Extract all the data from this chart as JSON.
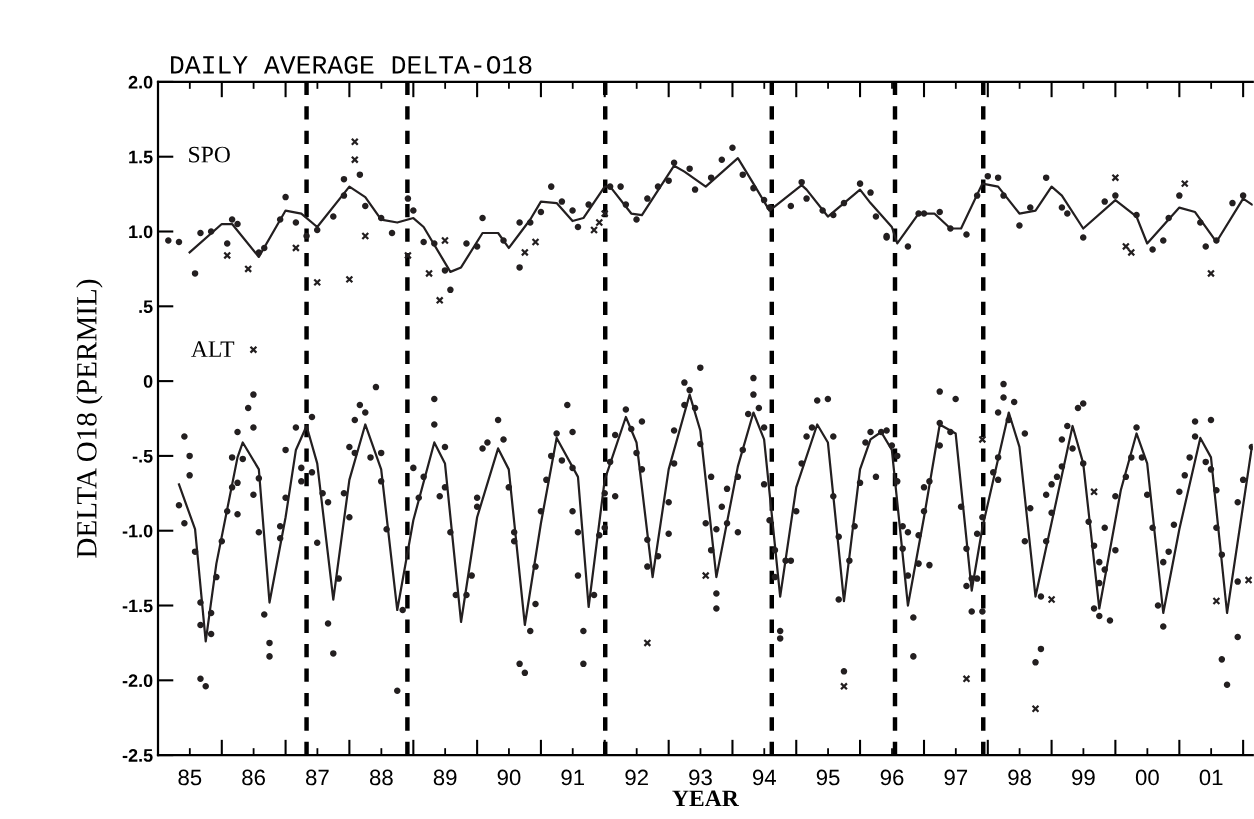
{
  "chart_data": {
    "type": "scatter",
    "title": "DAILY AVERAGE DELTA-O18",
    "xlabel": "YEAR",
    "ylabel": "DELTA O18 (PERMIL)",
    "xlim": [
      "1985-01-01",
      "2002-02-25"
    ],
    "ylim": [
      -2.5,
      2.0
    ],
    "xticks": [
      {
        "value": "1985-07-02",
        "label": "85"
      },
      {
        "value": "1986-07-02",
        "label": "86"
      },
      {
        "value": "1987-07-02",
        "label": "87"
      },
      {
        "value": "1988-07-02",
        "label": "88"
      },
      {
        "value": "1989-07-02",
        "label": "89"
      },
      {
        "value": "1990-07-02",
        "label": "90"
      },
      {
        "value": "1991-07-02",
        "label": "91"
      },
      {
        "value": "1992-07-02",
        "label": "92"
      },
      {
        "value": "1993-07-02",
        "label": "93"
      },
      {
        "value": "1994-07-02",
        "label": "94"
      },
      {
        "value": "1995-07-02",
        "label": "95"
      },
      {
        "value": "1996-07-02",
        "label": "96"
      },
      {
        "value": "1997-07-02",
        "label": "97"
      },
      {
        "value": "1998-07-02",
        "label": "98"
      },
      {
        "value": "1999-07-02",
        "label": "99"
      },
      {
        "value": "2000-07-02",
        "label": "00"
      },
      {
        "value": "2001-07-02",
        "label": "01"
      },
      {
        "value": "1986-01-01",
        "label": null
      },
      {
        "value": "1987-01-01",
        "label": null
      },
      {
        "value": "1988-01-01",
        "label": null
      },
      {
        "value": "1989-01-01",
        "label": null
      },
      {
        "value": "1990-01-01",
        "label": null
      },
      {
        "value": "1991-01-01",
        "label": null
      },
      {
        "value": "1992-01-01",
        "label": null
      },
      {
        "value": "1993-01-01",
        "label": null
      },
      {
        "value": "1994-01-01",
        "label": null
      },
      {
        "value": "1995-01-01",
        "label": null
      },
      {
        "value": "1996-01-01",
        "label": null
      },
      {
        "value": "1997-01-01",
        "label": null
      },
      {
        "value": "1998-01-01",
        "label": null
      },
      {
        "value": "1999-01-01",
        "label": null
      },
      {
        "value": "2000-01-01",
        "label": null
      },
      {
        "value": "2001-01-01",
        "label": null
      },
      {
        "value": "2002-01-01",
        "label": null
      }
    ],
    "yticks": [
      {
        "value": 2.0,
        "label": "2.0"
      },
      {
        "value": 1.5,
        "label": "1.5"
      },
      {
        "value": 1.0,
        "label": "1.0"
      },
      {
        "value": 0.5,
        "label": ".5"
      },
      {
        "value": 0,
        "label": "0"
      },
      {
        "value": -0.5,
        "label": "-.5"
      },
      {
        "value": -1.0,
        "label": "-1.0"
      },
      {
        "value": -1.5,
        "label": "-1.5"
      },
      {
        "value": -2.0,
        "label": "-2.0"
      },
      {
        "value": -2.5,
        "label": "-2.5"
      }
    ],
    "grid": false,
    "legend": false,
    "annotations": [
      "SPO",
      "ALT"
    ],
    "ref_lines": [
      {
        "axis": "x",
        "value": "1987-05-01",
        "line_style": "dashed",
        "color": "#000000"
      },
      {
        "axis": "x",
        "value": "1988-11-28",
        "line_style": "dashed",
        "color": "#000000"
      },
      {
        "axis": "x",
        "value": "1992-01-04",
        "line_style": "dashed",
        "color": "#000000"
      },
      {
        "axis": "x",
        "value": "1994-08-14",
        "line_style": "dashed",
        "color": "#000000"
      },
      {
        "axis": "x",
        "value": "1996-07-19",
        "line_style": "dashed",
        "color": "#000000"
      },
      {
        "axis": "x",
        "value": "1997-12-06",
        "line_style": "dashed",
        "color": "#000000"
      }
    ],
    "series": [
      {
        "marker": "circle",
        "color": "#231f20",
        "x": [
          "1985-03",
          "1985-05",
          "1985-08",
          "1985-09",
          "1985-11",
          "1986-03",
          "1986-04",
          "1986-02",
          "1986-08",
          "1986-09",
          "1986-12",
          "1987-01",
          "1987-03",
          "1987-05",
          "1987-07",
          "1987-10",
          "1987-12",
          "1987-12",
          "1988-03",
          "1988-04",
          "1988-07",
          "1988-09",
          "1988-12",
          "1989-01",
          "1989-03",
          "1989-05",
          "1989-07",
          "1989-08",
          "1989-11",
          "1990-01",
          "1990-02",
          "1990-06",
          "1990-09",
          "1990-09",
          "1990-11",
          "1991-01",
          "1991-03",
          "1991-05",
          "1991-07",
          "1991-08",
          "1991-10",
          "1992-02",
          "1992-04",
          "1992-05",
          "1992-07",
          "1992-09",
          "1992-11",
          "1993-01",
          "1993-02",
          "1993-05",
          "1993-06",
          "1993-09",
          "1993-11",
          "1994-01",
          "1994-03",
          "1994-05",
          "1994-07",
          "1994-08",
          "1994-12",
          "1995-02",
          "1995-03",
          "1995-06",
          "1995-08",
          "1995-10",
          "1996-01",
          "1996-03",
          "1996-04",
          "1996-06",
          "1996-06",
          "1996-10",
          "1996-12",
          "1997-01",
          "1997-04",
          "1997-06",
          "1997-09",
          "1997-11",
          "1998-01",
          "1998-03",
          "1998-04",
          "1998-07",
          "1998-09",
          "1998-12",
          "1999-03",
          "1999-04",
          "1999-07",
          "1999-11",
          "2000-01",
          "2000-05",
          "2000-08",
          "2000-10",
          "2000-11",
          "2001-01",
          "2001-05",
          "2001-06",
          "2001-08",
          "2001-11",
          "2002-01"
        ],
        "values": [
          0.94,
          0.93,
          0.72,
          0.99,
          1.0,
          1.08,
          1.05,
          0.92,
          0.86,
          0.89,
          1.08,
          1.23,
          1.06,
          0.97,
          1.01,
          1.1,
          1.35,
          1.24,
          1.38,
          1.17,
          1.09,
          0.99,
          1.22,
          1.14,
          0.93,
          0.92,
          0.74,
          0.61,
          0.92,
          0.9,
          1.09,
          0.94,
          0.76,
          1.06,
          1.06,
          1.13,
          1.3,
          1.2,
          1.14,
          1.03,
          1.18,
          1.3,
          1.3,
          1.18,
          1.08,
          1.22,
          1.3,
          1.34,
          1.46,
          1.42,
          1.28,
          1.36,
          1.48,
          1.56,
          1.38,
          1.29,
          1.21,
          1.16,
          1.17,
          1.33,
          1.22,
          1.14,
          1.11,
          1.19,
          1.32,
          1.26,
          1.1,
          0.97,
          0.96,
          0.9,
          1.12,
          1.12,
          1.13,
          1.02,
          0.98,
          1.24,
          1.37,
          1.36,
          1.24,
          1.04,
          1.16,
          1.36,
          1.16,
          1.12,
          0.96,
          1.2,
          1.24,
          1.11,
          0.88,
          0.94,
          1.09,
          1.24,
          1.06,
          0.9,
          0.94,
          1.19,
          1.24
        ]
      },
      {
        "marker": "cross",
        "color": "#231f20",
        "x": [
          "1986-02",
          "1986-06",
          "1987-03",
          "1987-07",
          "1988-01",
          "1988-02",
          "1988-02",
          "1988-04",
          "1988-12",
          "1989-04",
          "1989-07",
          "1989-06",
          "1990-10",
          "1990-12",
          "1991-11",
          "1991-12",
          "1992-01",
          "2000-01",
          "2000-03",
          "2000-04",
          "2001-02",
          "2001-07"
        ],
        "values": [
          0.84,
          0.75,
          0.89,
          0.66,
          0.68,
          1.48,
          1.6,
          0.97,
          0.84,
          0.72,
          0.94,
          0.54,
          0.86,
          0.93,
          1.01,
          1.06,
          1.12,
          1.36,
          0.9,
          0.86,
          1.32,
          0.72
        ]
      },
      {
        "type": "line",
        "marker": "none",
        "color": "#231f20",
        "x": [
          "1985-07",
          "1986-01",
          "1986-03",
          "1986-08",
          "1987-01",
          "1987-04",
          "1987-07",
          "1988-01",
          "1988-04",
          "1988-07",
          "1988-10",
          "1989-01",
          "1989-03",
          "1989-08",
          "1989-10",
          "1990-02",
          "1990-05",
          "1990-07",
          "1990-11",
          "1991-01",
          "1991-04",
          "1991-07",
          "1991-09",
          "1992-01",
          "1992-02",
          "1992-06",
          "1992-08",
          "1993-02",
          "1993-04",
          "1993-08",
          "1994-02",
          "1994-05",
          "1994-08",
          "1995-02",
          "1995-03",
          "1995-07",
          "1996-01",
          "1996-03",
          "1996-07",
          "1996-08",
          "1996-12",
          "1997-03",
          "1997-06",
          "1997-08",
          "1997-12",
          "1998-03",
          "1998-07",
          "1998-10",
          "1999-01",
          "1999-03",
          "1999-07",
          "2000-01",
          "2000-05",
          "2000-07",
          "2001-01",
          "2001-04",
          "2001-08",
          "2002-01",
          "2002-02-20"
        ],
        "values": [
          0.86,
          1.05,
          1.05,
          0.83,
          1.14,
          1.12,
          1.03,
          1.3,
          1.23,
          1.08,
          1.06,
          1.09,
          1.03,
          0.73,
          0.76,
          0.99,
          0.99,
          0.89,
          1.08,
          1.2,
          1.19,
          1.07,
          1.09,
          1.3,
          1.3,
          1.12,
          1.11,
          1.44,
          1.4,
          1.3,
          1.49,
          1.32,
          1.14,
          1.31,
          1.28,
          1.1,
          1.28,
          1.19,
          1.03,
          0.92,
          1.12,
          1.12,
          1.02,
          1.02,
          1.32,
          1.3,
          1.12,
          1.14,
          1.3,
          1.24,
          1.02,
          1.21,
          1.1,
          0.92,
          1.16,
          1.13,
          0.93,
          1.22,
          1.18
        ]
      },
      {
        "marker": "circle",
        "color": "#231f20",
        "x": [
          "1985-05",
          "1985-06",
          "1985-06",
          "1985-07",
          "1985-07",
          "1985-08",
          "1985-09",
          "1985-09",
          "1985-09",
          "1985-10",
          "1985-11",
          "1985-11",
          "1985-12",
          "1986-01",
          "1986-02",
          "1986-03",
          "1986-03",
          "1986-04",
          "1986-04",
          "1986-04",
          "1986-05",
          "1986-06",
          "1986-07",
          "1986-07",
          "1986-07",
          "1986-08",
          "1986-08",
          "1986-09",
          "1986-10",
          "1986-10",
          "1986-12",
          "1986-12",
          "1987-01",
          "1987-01",
          "1987-03",
          "1987-04",
          "1987-04",
          "1987-06",
          "1987-06",
          "1987-07",
          "1987-08",
          "1987-09",
          "1987-09",
          "1987-10",
          "1987-11",
          "1987-12",
          "1988-01",
          "1988-01",
          "1988-02",
          "1988-02",
          "1988-03",
          "1988-04",
          "1988-05",
          "1988-06",
          "1988-07",
          "1988-07",
          "1988-08",
          "1988-10",
          "1988-11",
          "1989-01",
          "1989-02",
          "1989-03",
          "1989-05",
          "1989-05",
          "1989-06",
          "1989-07",
          "1989-07",
          "1989-08",
          "1989-09",
          "1989-11",
          "1989-12",
          "1990-01",
          "1990-01",
          "1990-02",
          "1990-03",
          "1990-05",
          "1990-06",
          "1990-07",
          "1990-08",
          "1990-08",
          "1990-09",
          "1990-10",
          "1990-11",
          "1990-12",
          "1990-12",
          "1991-01",
          "1991-02",
          "1991-03",
          "1991-04",
          "1991-05",
          "1991-06",
          "1991-07",
          "1991-07",
          "1991-07",
          "1991-08",
          "1991-08",
          "1991-09",
          "1991-09",
          "1991-11",
          "1991-12",
          "1992-01",
          "1992-01",
          "1992-02",
          "1992-03",
          "1992-03",
          "1992-05",
          "1992-06",
          "1992-07",
          "1992-08",
          "1992-08",
          "1992-09",
          "1992-09",
          "1992-11",
          "1993-01",
          "1993-01",
          "1993-02",
          "1993-02",
          "1993-04",
          "1993-04",
          "1993-05",
          "1993-07",
          "1993-06",
          "1993-07",
          "1993-09",
          "1993-08",
          "1993-09",
          "1993-10",
          "1993-10",
          "1993-11",
          "1993-10",
          "1993-12",
          "1993-12",
          "1994-02",
          "1994-02",
          "1994-03",
          "1994-04",
          "1994-05",
          "1994-05",
          "1994-06",
          "1994-07",
          "1994-07",
          "1994-08",
          "1994-09",
          "1994-09",
          "1994-10",
          "1994-10",
          "1994-11",
          "1994-12",
          "1995-01",
          "1995-02",
          "1995-03",
          "1995-04",
          "1995-05",
          "1995-07",
          "1995-08",
          "1995-08",
          "1995-09",
          "1995-09",
          "1995-10",
          "1995-11",
          "1995-12",
          "1996-01",
          "1996-02",
          "1996-04",
          "1996-03",
          "1996-05",
          "1996-06",
          "1996-07",
          "1996-08",
          "1996-08",
          "1996-09",
          "1996-09",
          "1996-10",
          "1996-11",
          "1996-11",
          "1996-10",
          "1996-12",
          "1996-12",
          "1997-01",
          "1997-01",
          "1997-02",
          "1997-02",
          "1997-04",
          "1997-04",
          "1997-04",
          "1997-06",
          "1997-07",
          "1997-08",
          "1997-09",
          "1997-09",
          "1997-10",
          "1997-10",
          "1997-11",
          "1997-11",
          "1997-12",
          "1997-12",
          "1998-02",
          "1998-03",
          "1998-03",
          "1998-03",
          "1998-04",
          "1998-04",
          "1998-05",
          "1998-06",
          "1998-08",
          "1998-08",
          "1998-09",
          "1998-10",
          "1998-11",
          "1998-11",
          "1998-12",
          "1998-12",
          "1999-01",
          "1999-01",
          "1999-02",
          "1999-03",
          "1999-03",
          "1999-04",
          "1999-05",
          "1999-06",
          "1999-07",
          "1999-07",
          "1999-08",
          "1999-09",
          "1999-10",
          "1999-10",
          "1999-09",
          "1999-10",
          "1999-12",
          "1999-11",
          "1999-11",
          "2000-01",
          "2000-01",
          "2000-03",
          "2000-04",
          "2000-05",
          "2000-06",
          "2000-07",
          "2000-08",
          "2000-09",
          "2000-10",
          "2000-10",
          "2000-11",
          "2000-12",
          "2001-01",
          "2001-02",
          "2001-03",
          "2001-04",
          "2001-04",
          "2001-06",
          "2001-07",
          "2001-07",
          "2001-08",
          "2001-08",
          "2001-09",
          "2001-09",
          "2001-10",
          "2001-12",
          "2001-12",
          "2001-12",
          "2002-01",
          "2002-02-20"
        ],
        "values": [
          -0.83,
          -0.95,
          -0.37,
          -0.5,
          -0.63,
          -1.14,
          -1.48,
          -1.63,
          -1.99,
          -2.04,
          -1.69,
          -1.55,
          -1.31,
          -1.07,
          -0.87,
          -0.71,
          -0.51,
          -0.89,
          -0.68,
          -0.34,
          -0.52,
          -0.18,
          -0.09,
          -0.31,
          -0.76,
          -0.65,
          -1.01,
          -1.56,
          -1.75,
          -1.84,
          -0.97,
          -1.05,
          -0.46,
          -0.78,
          -0.31,
          -0.67,
          -0.58,
          -0.24,
          -0.61,
          -1.08,
          -0.75,
          -0.81,
          -1.62,
          -1.82,
          -1.32,
          -0.75,
          -0.91,
          -0.44,
          -0.48,
          -0.26,
          -0.16,
          -0.21,
          -0.51,
          -0.04,
          -0.67,
          -0.48,
          -0.99,
          -2.07,
          -1.53,
          -0.58,
          -0.78,
          -0.64,
          -0.12,
          -0.29,
          -0.77,
          -0.71,
          -0.44,
          -1.01,
          -1.43,
          -1.43,
          -1.3,
          -0.84,
          -0.78,
          -0.45,
          -0.41,
          -0.26,
          -0.39,
          -0.71,
          -1.01,
          -1.07,
          -1.89,
          -1.95,
          -1.67,
          -1.49,
          -1.24,
          -0.87,
          -0.66,
          -0.5,
          -0.35,
          -0.53,
          -0.16,
          -0.34,
          -0.58,
          -0.87,
          -1.01,
          -1.3,
          -1.67,
          -1.89,
          -1.43,
          -1.03,
          -0.75,
          -0.98,
          -0.54,
          -0.77,
          -0.36,
          -0.19,
          -0.32,
          -0.48,
          -0.27,
          -0.59,
          -1.06,
          -1.24,
          -1.17,
          -1.02,
          -0.81,
          -0.55,
          -0.33,
          -0.16,
          -0.01,
          -0.06,
          0.09,
          -0.18,
          -0.42,
          -0.64,
          -0.95,
          -1.13,
          -1.42,
          -1.52,
          -0.84,
          -0.99,
          -0.95,
          -0.72,
          -1.01,
          -0.64,
          -0.46,
          -0.22,
          -0.09,
          0.02,
          -0.18,
          -0.31,
          -0.69,
          -0.93,
          -1.13,
          -1.31,
          -1.67,
          -1.72,
          -1.2,
          -1.2,
          -0.87,
          -0.55,
          -0.37,
          -0.31,
          -0.13,
          -0.12,
          -0.37,
          -0.77,
          -1.04,
          -1.46,
          -1.94,
          -1.2,
          -0.97,
          -0.68,
          -0.41,
          -0.64,
          -0.34,
          -0.34,
          -0.33,
          -0.43,
          -0.5,
          -0.67,
          -0.97,
          -1.12,
          -1.3,
          -1.58,
          -1.84,
          -1.01,
          -1.03,
          -1.22,
          -0.71,
          -0.87,
          -1.23,
          -0.67,
          -0.43,
          -0.07,
          -0.28,
          -0.34,
          -0.12,
          -0.84,
          -1.37,
          -1.12,
          -1.32,
          -1.54,
          -1.02,
          -1.32,
          -0.91,
          -1.54,
          -0.61,
          -0.66,
          -0.51,
          -0.21,
          -0.02,
          -0.11,
          -0.26,
          -0.14,
          -0.35,
          -1.07,
          -0.85,
          -1.88,
          -1.79,
          -1.44,
          -1.07,
          -0.76,
          -0.88,
          -0.69,
          -0.64,
          -0.57,
          -0.39,
          -0.3,
          -0.45,
          -0.18,
          -0.15,
          -0.55,
          -0.94,
          -1.1,
          -1.21,
          -1.35,
          -1.52,
          -1.57,
          -1.6,
          -1.26,
          -0.98,
          -1.13,
          -0.77,
          -0.64,
          -0.51,
          -0.31,
          -0.51,
          -0.76,
          -0.98,
          -1.5,
          -1.64,
          -1.21,
          -1.14,
          -0.96,
          -0.74,
          -0.63,
          -0.51,
          -0.37,
          -0.27,
          -0.54,
          -0.26,
          -0.59,
          -0.73,
          -0.98,
          -1.16,
          -1.86,
          -2.03,
          -1.71,
          -1.34,
          -0.81,
          -0.66,
          -0.44
        ]
      },
      {
        "marker": "cross",
        "color": "#231f20",
        "x": [
          "1986-07",
          "1992-09",
          "1993-08",
          "1995-10",
          "1997-12",
          "1997-09",
          "1998-10",
          "1999-01",
          "1999-09",
          "2001-08",
          "2002-02"
        ],
        "values": [
          0.21,
          -1.75,
          -1.3,
          -2.04,
          -0.39,
          -1.99,
          -2.19,
          -1.46,
          -0.74,
          -1.47,
          -1.33
        ]
      },
      {
        "type": "line",
        "marker": "none",
        "color": "#231f20",
        "x": [
          "1985-05",
          "1985-08",
          "1985-10",
          "1985-12",
          "1986-04",
          "1986-05",
          "1986-08",
          "1986-10",
          "1987-01",
          "1987-03",
          "1987-05",
          "1987-07",
          "1987-10",
          "1988-01",
          "1988-04",
          "1988-07",
          "1988-10",
          "1989-01",
          "1989-05",
          "1989-07",
          "1989-10",
          "1990-01",
          "1990-05",
          "1990-07",
          "1990-10",
          "1991-01",
          "1991-04",
          "1991-08",
          "1991-10",
          "1992-01",
          "1992-05",
          "1992-07",
          "1992-10",
          "1993-01",
          "1993-05",
          "1993-07",
          "1993-10",
          "1994-02",
          "1994-05",
          "1994-07",
          "1994-10",
          "1995-01",
          "1995-05",
          "1995-07",
          "1995-10",
          "1996-01",
          "1996-03",
          "1996-05",
          "1996-07",
          "1996-10",
          "1997-01",
          "1997-04",
          "1997-07",
          "1997-10",
          "1997-12",
          "1998-05",
          "1998-07",
          "1998-10",
          "1999-02",
          "1999-05",
          "1999-07",
          "1999-10",
          "2000-02",
          "2000-05",
          "2000-07",
          "2000-10",
          "2001-01",
          "2001-05",
          "2001-07",
          "2001-10",
          "2002-02-20"
        ],
        "values": [
          -0.69,
          -0.99,
          -1.74,
          -1.22,
          -0.51,
          -0.41,
          -0.59,
          -1.48,
          -0.91,
          -0.46,
          -0.3,
          -0.55,
          -1.46,
          -0.66,
          -0.29,
          -0.59,
          -1.53,
          -0.93,
          -0.41,
          -0.55,
          -1.61,
          -0.91,
          -0.45,
          -0.59,
          -1.63,
          -0.95,
          -0.38,
          -0.64,
          -1.51,
          -0.66,
          -0.24,
          -0.41,
          -1.31,
          -0.59,
          -0.09,
          -0.33,
          -1.31,
          -0.57,
          -0.21,
          -0.39,
          -1.44,
          -0.71,
          -0.29,
          -0.41,
          -1.47,
          -0.59,
          -0.39,
          -0.34,
          -0.46,
          -1.5,
          -0.91,
          -0.29,
          -0.35,
          -1.4,
          -0.98,
          -0.21,
          -0.44,
          -1.44,
          -0.78,
          -0.3,
          -0.55,
          -1.52,
          -0.73,
          -0.35,
          -0.55,
          -1.55,
          -0.99,
          -0.38,
          -0.51,
          -1.55,
          -0.44
        ]
      }
    ]
  }
}
